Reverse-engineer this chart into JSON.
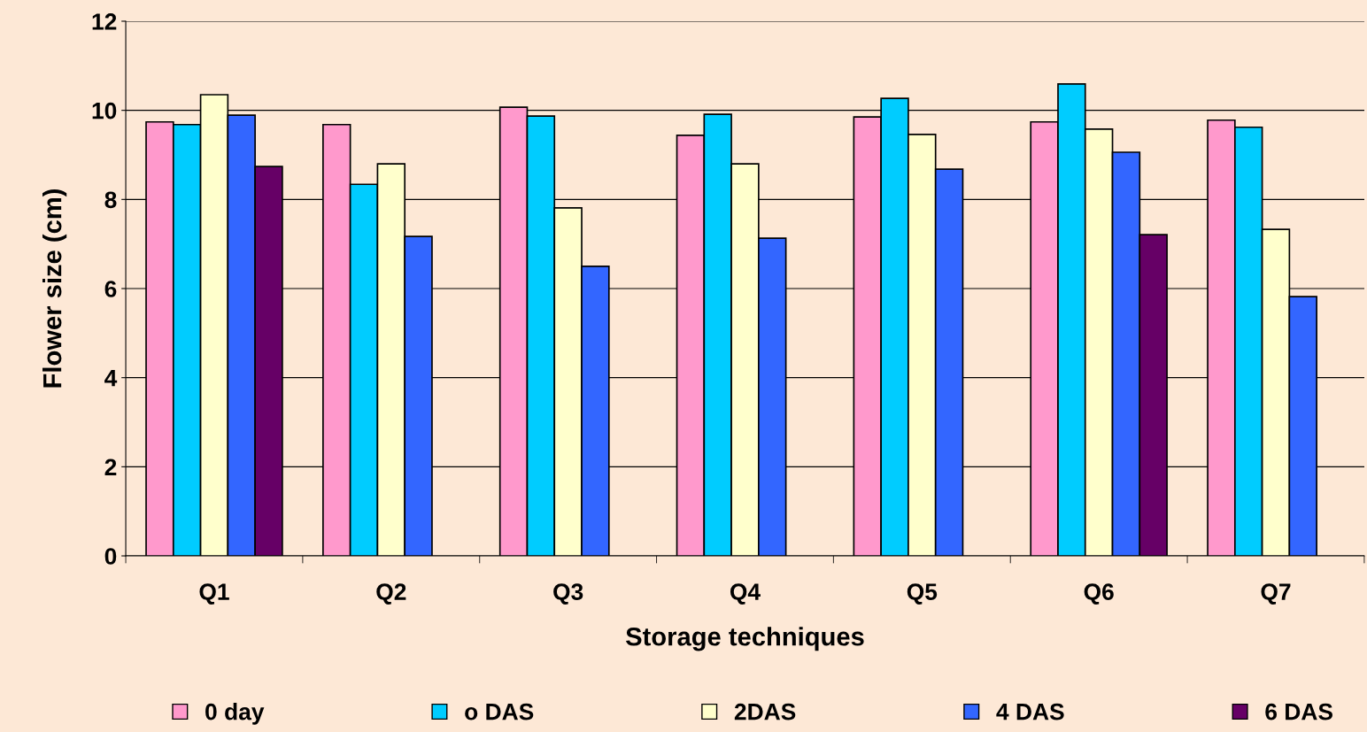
{
  "chart_data": {
    "type": "bar",
    "xlabel": "Storage techniques",
    "ylabel": "Flower size (cm)",
    "categories": [
      "Q1",
      "Q2",
      "Q3",
      "Q4",
      "Q5",
      "Q6",
      "Q7"
    ],
    "series": [
      {
        "name": "0 day",
        "color": "#ff99cc",
        "values": [
          9.74,
          9.68,
          10.07,
          9.44,
          9.85,
          9.74,
          9.78
        ]
      },
      {
        "name": "o DAS",
        "color": "#00ccff",
        "values": [
          9.68,
          8.34,
          9.87,
          9.91,
          10.27,
          10.59,
          9.62
        ]
      },
      {
        "name": "2DAS",
        "color": "#ffffcc",
        "values": [
          10.35,
          8.8,
          7.81,
          8.8,
          9.46,
          9.58,
          7.33
        ]
      },
      {
        "name": "4 DAS",
        "color": "#3366ff",
        "values": [
          9.89,
          7.17,
          6.5,
          7.13,
          8.68,
          9.06,
          5.82
        ]
      },
      {
        "name": "6 DAS",
        "color": "#660066",
        "values": [
          8.74,
          null,
          null,
          null,
          null,
          7.21,
          null
        ]
      }
    ],
    "ylim": [
      0,
      12
    ],
    "yticks": [
      0,
      2,
      4,
      6,
      8,
      10,
      12
    ],
    "grid": "y",
    "legend": "bottom"
  }
}
